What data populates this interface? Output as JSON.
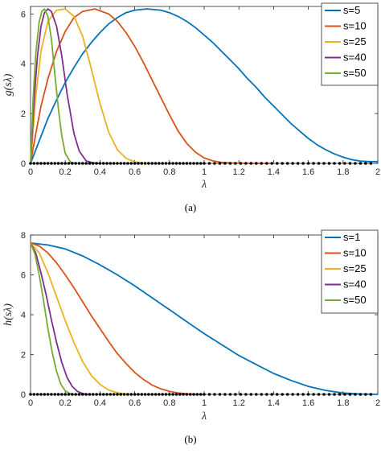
{
  "charts": [
    {
      "caption": "(a)",
      "chart_data": {
        "type": "line",
        "xlabel": "λ",
        "ylabel": "g(sλ)",
        "xlim": [
          0,
          2
        ],
        "ylim": [
          0,
          6.3
        ],
        "xticks": [
          "0",
          "0.2",
          "0.4",
          "0.6",
          "0.8",
          "1",
          "1.2",
          "1.4",
          "1.6",
          "1.8",
          "2"
        ],
        "yticks": [
          "0",
          "2",
          "4",
          "6"
        ],
        "grid": false,
        "legend_position": "top-right",
        "eigenvalues_shown_as_dots": [
          0.0,
          0.02,
          0.04,
          0.06,
          0.08,
          0.1,
          0.12,
          0.14,
          0.16,
          0.18,
          0.2,
          0.22,
          0.24,
          0.26,
          0.28,
          0.3,
          0.32,
          0.34,
          0.36,
          0.38,
          0.4,
          0.42,
          0.44,
          0.46,
          0.48,
          0.5,
          0.52,
          0.54,
          0.56,
          0.58,
          0.6,
          0.62,
          0.64,
          0.66,
          0.68,
          0.7,
          0.72,
          0.74,
          0.76,
          0.78,
          0.8,
          0.82,
          0.84,
          0.86,
          0.88,
          0.9,
          0.92,
          0.94,
          0.96,
          0.98,
          1.0,
          1.03,
          1.06,
          1.09,
          1.12,
          1.15,
          1.18,
          1.21,
          1.24,
          1.27,
          1.3,
          1.33,
          1.36,
          1.39,
          1.42,
          1.45,
          1.48,
          1.51,
          1.54,
          1.57,
          1.6,
          1.63,
          1.66,
          1.69,
          1.72,
          1.75,
          1.78,
          1.81,
          1.84,
          1.87,
          1.9,
          1.93,
          1.96
        ],
        "series": [
          {
            "name": "s=5",
            "color": "#0072BD",
            "x": [
              0,
              0.05,
              0.1,
              0.15,
              0.2,
              0.25,
              0.3,
              0.35,
              0.4,
              0.45,
              0.5,
              0.55,
              0.6,
              0.67,
              0.75,
              0.8,
              0.85,
              0.9,
              0.95,
              1.0,
              1.05,
              1.1,
              1.15,
              1.2,
              1.25,
              1.3,
              1.35,
              1.4,
              1.45,
              1.5,
              1.55,
              1.6,
              1.65,
              1.7,
              1.75,
              1.8,
              1.85,
              1.9,
              1.95,
              2.0
            ],
            "values": [
              0,
              0.9,
              1.8,
              2.55,
              3.25,
              3.85,
              4.4,
              4.85,
              5.25,
              5.6,
              5.85,
              6.05,
              6.15,
              6.2,
              6.15,
              6.05,
              5.9,
              5.7,
              5.45,
              5.15,
              4.85,
              4.5,
              4.15,
              3.8,
              3.4,
              3.05,
              2.65,
              2.3,
              1.95,
              1.6,
              1.3,
              1.0,
              0.75,
              0.55,
              0.38,
              0.25,
              0.15,
              0.09,
              0.07,
              0.07
            ]
          },
          {
            "name": "s=10",
            "color": "#D95319",
            "x": [
              0,
              0.03,
              0.06,
              0.1,
              0.15,
              0.2,
              0.25,
              0.3,
              0.37,
              0.45,
              0.5,
              0.55,
              0.6,
              0.65,
              0.7,
              0.75,
              0.8,
              0.85,
              0.9,
              0.95,
              1.0,
              1.05,
              1.1,
              1.15,
              1.2,
              1.3,
              1.4
            ],
            "values": [
              0,
              1.2,
              2.3,
              3.4,
              4.5,
              5.3,
              5.85,
              6.1,
              6.2,
              6.0,
              5.7,
              5.25,
              4.7,
              4.05,
              3.35,
              2.65,
              1.95,
              1.3,
              0.8,
              0.45,
              0.22,
              0.1,
              0.04,
              0.02,
              0.01,
              0,
              0
            ]
          },
          {
            "name": "s=25",
            "color": "#EDB120",
            "x": [
              0,
              0.03,
              0.06,
              0.1,
              0.15,
              0.2,
              0.25,
              0.3,
              0.35,
              0.4,
              0.45,
              0.5,
              0.55,
              0.6,
              0.65,
              0.7
            ],
            "values": [
              0,
              2.7,
              4.5,
              5.7,
              6.15,
              6.2,
              5.9,
              5.1,
              3.8,
              2.4,
              1.25,
              0.55,
              0.2,
              0.06,
              0.02,
              0
            ]
          },
          {
            "name": "s=40",
            "color": "#7E2F8E",
            "x": [
              0,
              0.02,
              0.04,
              0.06,
              0.08,
              0.1,
              0.12,
              0.15,
              0.18,
              0.21,
              0.25,
              0.28,
              0.32,
              0.36,
              0.4
            ],
            "values": [
              0,
              2.5,
              4.3,
              5.5,
              6.05,
              6.2,
              6.1,
              5.5,
              4.3,
              2.8,
              1.2,
              0.5,
              0.1,
              0.02,
              0
            ]
          },
          {
            "name": "s=50",
            "color": "#77AC30",
            "x": [
              0,
              0.015,
              0.03,
              0.05,
              0.065,
              0.08,
              0.1,
              0.12,
              0.14,
              0.16,
              0.18,
              0.2,
              0.23,
              0.26
            ],
            "values": [
              0,
              2.6,
              4.4,
              5.7,
              6.1,
              6.2,
              5.9,
              5.0,
              3.6,
              2.2,
              1.1,
              0.4,
              0.05,
              0
            ]
          }
        ]
      }
    },
    {
      "caption": "(b)",
      "chart_data": {
        "type": "line",
        "xlabel": "λ",
        "ylabel": "h(sλ)",
        "xlim": [
          0,
          2
        ],
        "ylim": [
          0,
          8
        ],
        "xticks": [
          "0",
          "0.2",
          "0.4",
          "0.6",
          "0.8",
          "1",
          "1.2",
          "1.4",
          "1.6",
          "1.8",
          "2"
        ],
        "yticks": [
          "0",
          "2",
          "4",
          "6",
          "8"
        ],
        "grid": false,
        "legend_position": "top-right",
        "eigenvalues_shown_as_dots": [
          0.0,
          0.02,
          0.04,
          0.06,
          0.08,
          0.1,
          0.12,
          0.14,
          0.16,
          0.18,
          0.2,
          0.22,
          0.24,
          0.26,
          0.28,
          0.3,
          0.32,
          0.34,
          0.36,
          0.38,
          0.4,
          0.42,
          0.44,
          0.46,
          0.48,
          0.5,
          0.52,
          0.54,
          0.56,
          0.58,
          0.6,
          0.62,
          0.64,
          0.66,
          0.68,
          0.7,
          0.72,
          0.74,
          0.76,
          0.78,
          0.8,
          0.82,
          0.84,
          0.86,
          0.88,
          0.9,
          0.92,
          0.94,
          0.96,
          0.98,
          1.0,
          1.03,
          1.06,
          1.09,
          1.12,
          1.15,
          1.18,
          1.21,
          1.24,
          1.27,
          1.3,
          1.33,
          1.36,
          1.39,
          1.42,
          1.45,
          1.48,
          1.51,
          1.54,
          1.57,
          1.6,
          1.63,
          1.66,
          1.69,
          1.72,
          1.75,
          1.78,
          1.81,
          1.84,
          1.87,
          1.9,
          1.93,
          1.96
        ],
        "series": [
          {
            "name": "s=1",
            "color": "#0072BD",
            "x": [
              0,
              0.1,
              0.2,
              0.3,
              0.4,
              0.5,
              0.6,
              0.7,
              0.8,
              0.9,
              1.0,
              1.1,
              1.2,
              1.3,
              1.4,
              1.5,
              1.6,
              1.7,
              1.8,
              1.9,
              2.0
            ],
            "values": [
              7.6,
              7.5,
              7.3,
              6.95,
              6.5,
              6.0,
              5.45,
              4.85,
              4.25,
              3.65,
              3.05,
              2.5,
              1.95,
              1.5,
              1.05,
              0.7,
              0.4,
              0.2,
              0.07,
              0.02,
              0
            ]
          },
          {
            "name": "s=10",
            "color": "#D95319",
            "x": [
              0,
              0.05,
              0.1,
              0.15,
              0.2,
              0.25,
              0.3,
              0.35,
              0.4,
              0.45,
              0.5,
              0.55,
              0.6,
              0.65,
              0.7,
              0.75,
              0.8,
              0.85,
              0.9,
              0.95,
              1.0
            ],
            "values": [
              7.6,
              7.45,
              7.1,
              6.6,
              6.0,
              5.35,
              4.65,
              3.95,
              3.3,
              2.65,
              2.05,
              1.55,
              1.1,
              0.75,
              0.47,
              0.28,
              0.15,
              0.07,
              0.03,
              0.01,
              0
            ]
          },
          {
            "name": "s=25",
            "color": "#EDB120",
            "x": [
              0,
              0.05,
              0.1,
              0.15,
              0.2,
              0.25,
              0.3,
              0.35,
              0.4,
              0.45,
              0.5,
              0.55,
              0.6
            ],
            "values": [
              7.6,
              7.1,
              6.1,
              4.9,
              3.7,
              2.6,
              1.65,
              0.95,
              0.5,
              0.22,
              0.08,
              0.02,
              0
            ]
          },
          {
            "name": "s=40",
            "color": "#7E2F8E",
            "x": [
              0,
              0.03,
              0.06,
              0.09,
              0.12,
              0.15,
              0.18,
              0.21,
              0.24,
              0.27,
              0.3,
              0.33
            ],
            "values": [
              7.6,
              7.1,
              6.1,
              5.0,
              3.75,
              2.6,
              1.6,
              0.85,
              0.4,
              0.15,
              0.04,
              0
            ]
          },
          {
            "name": "s=50",
            "color": "#77AC30",
            "x": [
              0,
              0.025,
              0.05,
              0.075,
              0.1,
              0.125,
              0.15,
              0.175,
              0.2,
              0.225,
              0.25
            ],
            "values": [
              7.6,
              7.05,
              6.0,
              4.7,
              3.3,
              2.1,
              1.15,
              0.5,
              0.18,
              0.05,
              0
            ]
          }
        ]
      }
    }
  ]
}
